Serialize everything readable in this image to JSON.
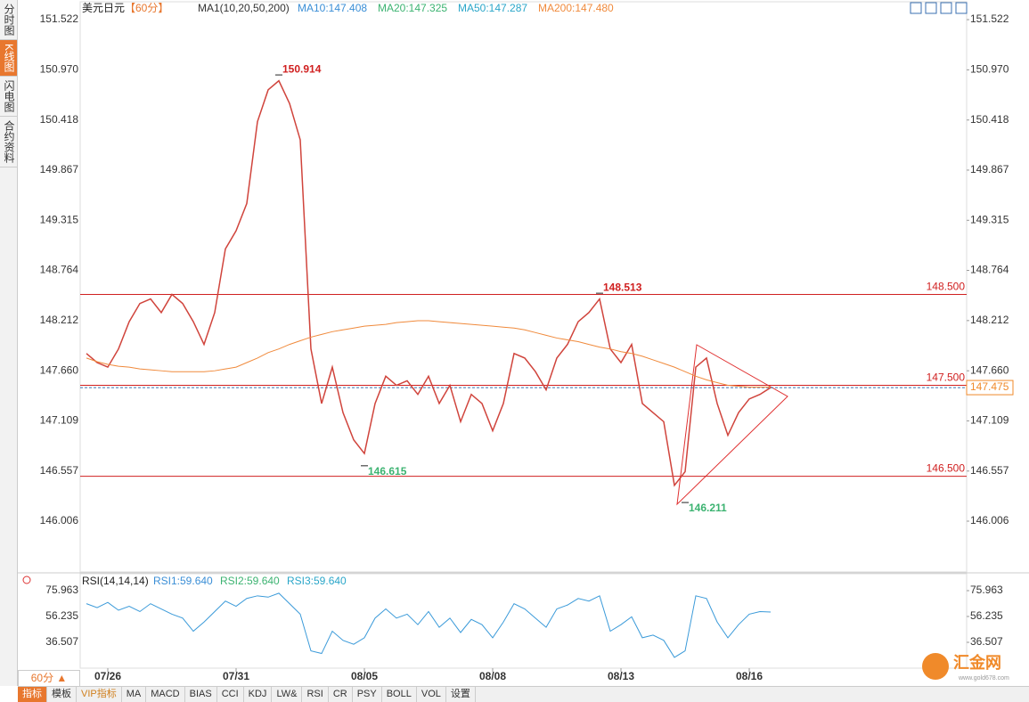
{
  "sidebar": [
    "分时图",
    "K线图",
    "闪电图",
    "合约资料"
  ],
  "toolbar": {
    "period": "60分 ▲",
    "tabs": [
      "指标",
      "模板",
      "VIP指标",
      "MA",
      "MACD",
      "BIAS",
      "CCI",
      "KDJ",
      "LW&",
      "RSI",
      "CR",
      "PSY",
      "BOLL",
      "VOL",
      "设置"
    ]
  },
  "logo": {
    "name": "汇金网",
    "url": "www.gold678.com"
  },
  "chart_data": {
    "type": "line",
    "title": "美元日元",
    "period": "【60分】",
    "legend": [
      {
        "name": "MA1(10,20,50,200)",
        "color": "#333333"
      },
      {
        "name": "MA10:147.408",
        "color": "#3a8ed6"
      },
      {
        "name": "MA20:147.325",
        "color": "#3cb371"
      },
      {
        "name": "MA50:147.287",
        "color": "#2aa6c9"
      },
      {
        "name": "MA200:147.480",
        "color": "#f08a3c"
      }
    ],
    "categories": [
      null,
      null,
      "07/26",
      null,
      null,
      null,
      null,
      null,
      null,
      null,
      null,
      null,
      null,
      null,
      "07/31",
      null,
      null,
      null,
      null,
      null,
      null,
      null,
      null,
      null,
      null,
      null,
      "08/05",
      null,
      null,
      null,
      null,
      null,
      null,
      null,
      null,
      null,
      null,
      null,
      "08/08",
      null,
      null,
      null,
      null,
      null,
      null,
      null,
      null,
      null,
      null,
      null,
      "08/13",
      null,
      null,
      null,
      null,
      null,
      null,
      null,
      null,
      null,
      null,
      null,
      "08/16",
      null,
      null
    ],
    "series": [
      {
        "color": "#d0443c",
        "values": [
          147.85,
          147.75,
          147.7,
          147.9,
          148.2,
          148.4,
          148.45,
          148.3,
          148.5,
          148.4,
          148.2,
          147.95,
          148.3,
          149.0,
          149.2,
          149.5,
          150.4,
          150.75,
          150.85,
          150.6,
          150.2,
          147.9,
          147.3,
          147.7,
          147.2,
          146.9,
          146.75,
          147.3,
          147.6,
          147.5,
          147.55,
          147.4,
          147.6,
          147.3,
          147.5,
          147.1,
          147.4,
          147.3,
          147.0,
          147.3,
          147.85,
          147.8,
          147.65,
          147.45,
          147.8,
          147.95,
          148.2,
          148.3,
          148.45,
          147.9,
          147.75,
          147.95,
          147.3,
          147.2,
          147.1,
          146.4,
          146.55,
          147.7,
          147.8,
          147.3,
          146.95,
          147.2,
          147.35,
          147.4,
          147.475
        ]
      },
      {
        "color": "#f08a3c",
        "values": [
          147.8,
          147.76,
          147.73,
          147.71,
          147.7,
          147.68,
          147.67,
          147.66,
          147.65,
          147.65,
          147.65,
          147.65,
          147.66,
          147.68,
          147.7,
          147.75,
          147.8,
          147.86,
          147.9,
          147.95,
          147.99,
          148.03,
          148.06,
          148.09,
          148.11,
          148.13,
          148.15,
          148.16,
          148.17,
          148.19,
          148.2,
          148.21,
          148.21,
          148.2,
          148.19,
          148.18,
          148.17,
          148.16,
          148.15,
          148.14,
          148.13,
          148.11,
          148.08,
          148.05,
          148.02,
          148.0,
          147.98,
          147.95,
          147.92,
          147.9,
          147.87,
          147.85,
          147.82,
          147.78,
          147.74,
          147.7,
          147.65,
          147.6,
          147.56,
          147.53,
          147.5,
          147.49,
          147.48,
          147.48,
          147.48
        ]
      }
    ],
    "ylim": [
      145.467,
      151.689
    ],
    "yticks": [
      151.522,
      {
        "value": 150.97,
        "label": "150.970"
      },
      150.418,
      149.867,
      149.315,
      148.764,
      148.212,
      {
        "value": 147.66,
        "label": "147.660"
      },
      147.109,
      146.557,
      146.006
    ],
    "levels": [
      {
        "value": 148.5,
        "label": "148.500"
      },
      {
        "value": 147.5,
        "label": "147.500"
      },
      {
        "value": 146.5,
        "label": "146.500"
      }
    ],
    "current": 147.475,
    "extremes": [
      {
        "value": 150.914,
        "index": 18,
        "kind": "high"
      },
      {
        "value": 146.615,
        "index": 26,
        "kind": "low"
      },
      {
        "value": 148.513,
        "index": 48,
        "kind": "high"
      },
      {
        "value": 146.211,
        "index": 56,
        "kind": "low"
      }
    ],
    "rsi": {
      "title": "RSI(14,14,14)",
      "legend": [
        {
          "name": "RSI1:59.640",
          "color": "#3a8ed6"
        },
        {
          "name": "RSI2:59.640",
          "color": "#3cb371"
        },
        {
          "name": "RSI3:59.640",
          "color": "#2aa6c9"
        }
      ],
      "color": "#3a9ad9",
      "values": [
        66,
        63,
        67,
        61,
        64,
        60,
        66,
        62,
        58,
        55,
        45,
        52,
        60,
        68,
        64,
        70,
        72,
        71,
        74,
        66,
        58,
        30,
        28,
        45,
        38,
        35,
        40,
        55,
        62,
        55,
        58,
        50,
        60,
        48,
        55,
        44,
        54,
        50,
        40,
        52,
        66,
        62,
        55,
        48,
        62,
        65,
        70,
        68,
        72,
        45,
        50,
        56,
        40,
        42,
        38,
        25,
        30,
        72,
        70,
        52,
        40,
        50,
        58,
        60,
        59.64
      ],
      "ylim": [
        16.8,
        88.2
      ],
      "yticks": [
        75.963,
        56.235,
        36.507
      ]
    }
  }
}
